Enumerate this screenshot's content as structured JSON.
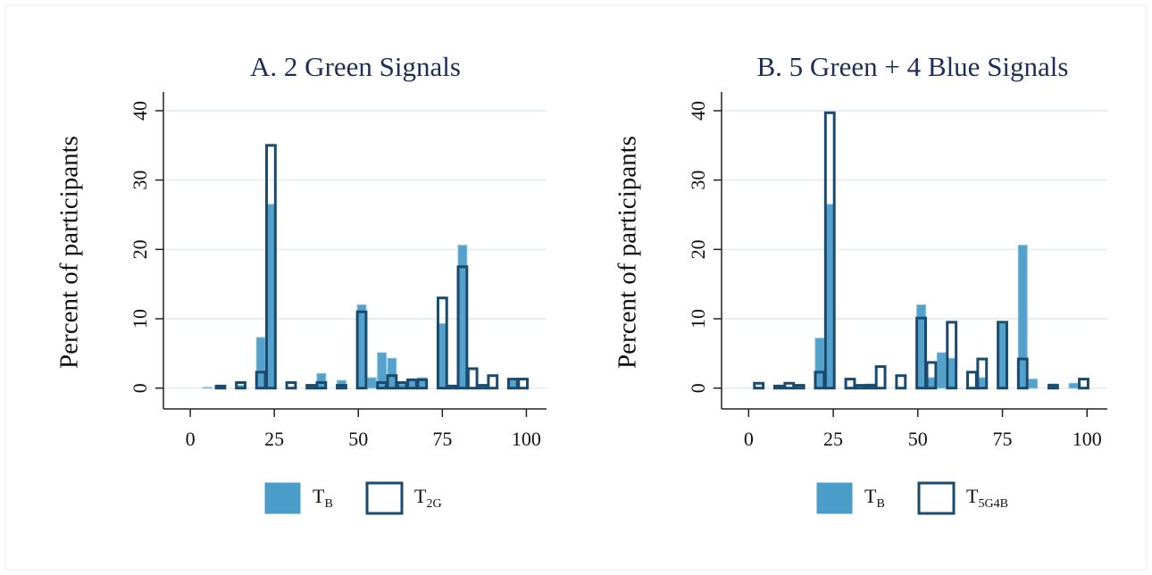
{
  "chart_data": [
    {
      "type": "bar",
      "title": "A. 2 Green Signals",
      "y_label": "Percent of participants",
      "x": [
        5,
        9,
        15,
        21,
        24,
        30,
        36,
        39,
        45,
        51,
        54,
        57,
        60,
        63,
        66,
        69,
        75,
        78,
        81,
        84,
        87,
        90,
        96,
        99
      ],
      "series": [
        {
          "name": "T",
          "subscript": "B",
          "color": "#4b9dc9",
          "style": "filled",
          "values": [
            0.1,
            null,
            0.4,
            7.3,
            26.5,
            null,
            0.4,
            2.1,
            1.1,
            12,
            1.5,
            5.1,
            4.3,
            0.6,
            1.3,
            1.5,
            9.3,
            0.3,
            20.6,
            null,
            null,
            null,
            1.1,
            null
          ]
        },
        {
          "name": "T",
          "subscript": "2G",
          "color": "#1a4a6e",
          "style": "outline",
          "values": [
            null,
            0.3,
            0.8,
            2.3,
            35,
            0.8,
            0.4,
            0.8,
            0.4,
            11,
            null,
            0.8,
            1.8,
            0.8,
            1.2,
            1.2,
            13,
            0.3,
            17.5,
            2.8,
            0.4,
            1.8,
            1.3,
            1.3
          ]
        }
      ],
      "xlim": [
        -8,
        106
      ],
      "xticks": [
        0,
        25,
        50,
        75,
        100
      ],
      "ylim": [
        -3,
        42.7
      ],
      "yticks": [
        0,
        10,
        20,
        30,
        40
      ],
      "grid": true
    },
    {
      "type": "bar",
      "title": "B. 5 Green + 4 Blue Signals",
      "y_label": "Percent of participants",
      "x": [
        3,
        9,
        12,
        15,
        21,
        24,
        30,
        33,
        36,
        39,
        45,
        51,
        54,
        57,
        60,
        66,
        69,
        75,
        81,
        84,
        90,
        96,
        99
      ],
      "series": [
        {
          "name": "T",
          "subscript": "B",
          "color": "#4b9dc9",
          "style": "filled",
          "values": [
            null,
            null,
            null,
            null,
            7.2,
            26.5,
            null,
            null,
            0.6,
            null,
            null,
            12,
            1.5,
            5.1,
            4.3,
            null,
            1.5,
            9.3,
            20.6,
            1.3,
            0.6,
            0.7,
            null
          ]
        },
        {
          "name": "T",
          "subscript": "5G4B",
          "color": "#1a4a6e",
          "style": "outline",
          "values": [
            0.7,
            0.3,
            0.7,
            0.4,
            2.3,
            39.7,
            1.3,
            0.4,
            0.4,
            3.1,
            1.8,
            10.1,
            3.7,
            null,
            9.5,
            2.3,
            4.2,
            9.5,
            4.2,
            null,
            0.4,
            null,
            1.3
          ]
        }
      ],
      "xlim": [
        -8,
        106
      ],
      "xticks": [
        0,
        25,
        50,
        75,
        100
      ],
      "ylim": [
        -3,
        42.7
      ],
      "yticks": [
        0,
        10,
        20,
        30,
        40
      ],
      "grid": true
    }
  ]
}
